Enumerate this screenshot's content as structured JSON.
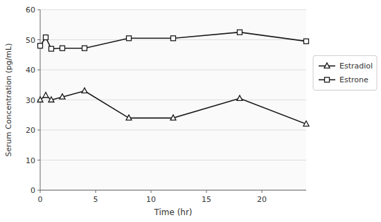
{
  "chart_data": {
    "type": "line",
    "x": [
      0,
      0.5,
      1,
      2,
      4,
      8,
      12,
      18,
      24
    ],
    "series": [
      {
        "name": "Estradiol",
        "color": "#1a1a1a",
        "marker": "triangle",
        "values": [
          30.0,
          31.5,
          30.0,
          31.0,
          33.0,
          24.0,
          24.0,
          30.5,
          22.0
        ]
      },
      {
        "name": "Estrone",
        "color": "#1a1a1a",
        "marker": "square",
        "values": [
          48.0,
          50.8,
          47.0,
          47.2,
          47.2,
          50.5,
          50.5,
          52.5,
          49.5
        ]
      }
    ],
    "xlabel": "Time (hr)",
    "ylabel": "Serum Concentration (pg/mL)",
    "xlim": [
      0,
      24
    ],
    "ylim": [
      0,
      60
    ],
    "xticks": [
      0,
      5,
      10,
      15,
      20
    ],
    "yticks": [
      0,
      10,
      20,
      30,
      40,
      50,
      60
    ],
    "grid": true,
    "legend": "right"
  }
}
